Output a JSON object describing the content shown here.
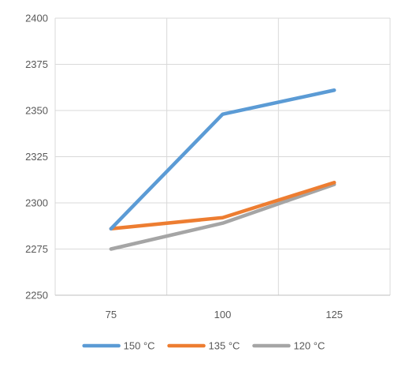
{
  "chart_data": {
    "type": "line",
    "title": "",
    "xlabel": "",
    "ylabel": "",
    "x": [
      75,
      100,
      125
    ],
    "x_tick_labels": [
      "75",
      "100",
      "125"
    ],
    "ylim": [
      2250,
      2400
    ],
    "y_ticks": [
      2250,
      2275,
      2300,
      2325,
      2350,
      2375,
      2400
    ],
    "grid": true,
    "legend_position": "bottom",
    "series": [
      {
        "name": "150 °C",
        "color": "#5b9bd5",
        "values": [
          2286,
          2348,
          2361
        ]
      },
      {
        "name": "135 °C",
        "color": "#ed7d31",
        "values": [
          2286,
          2292,
          2311
        ]
      },
      {
        "name": "120 °C",
        "color": "#a5a5a5",
        "values": [
          2275,
          2289,
          2310
        ]
      }
    ]
  }
}
